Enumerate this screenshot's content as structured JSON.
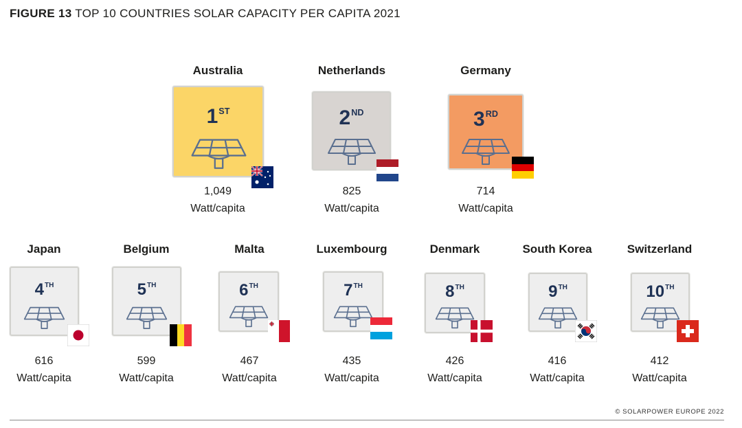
{
  "title": {
    "figure_number": "FIGURE 13",
    "text": "TOP 10 COUNTRIES SOLAR CAPACITY PER CAPITA 2021"
  },
  "source": "© SOLARPOWER EUROPE 2022",
  "chart_data": {
    "type": "ranking",
    "title": "TOP 10 COUNTRIES SOLAR CAPACITY PER CAPITA 2021",
    "unit": "Watt/capita",
    "entries": [
      {
        "rank": 1,
        "rank_number": "1",
        "rank_suffix": "ST",
        "country": "Australia",
        "value": 1049,
        "value_label": "1,049",
        "flag": "flag-australia",
        "box_color": "#fbd567"
      },
      {
        "rank": 2,
        "rank_number": "2",
        "rank_suffix": "ND",
        "country": "Netherlands",
        "value": 825,
        "value_label": "825",
        "flag": "flag-netherlands",
        "box_color": "#d8d4d1"
      },
      {
        "rank": 3,
        "rank_number": "3",
        "rank_suffix": "RD",
        "country": "Germany",
        "value": 714,
        "value_label": "714",
        "flag": "flag-germany",
        "box_color": "#f39b62"
      },
      {
        "rank": 4,
        "rank_number": "4",
        "rank_suffix": "TH",
        "country": "Japan",
        "value": 616,
        "value_label": "616",
        "flag": "flag-japan",
        "box_color": "#eeeeee"
      },
      {
        "rank": 5,
        "rank_number": "5",
        "rank_suffix": "TH",
        "country": "Belgium",
        "value": 599,
        "value_label": "599",
        "flag": "flag-belgium",
        "box_color": "#eeeeee"
      },
      {
        "rank": 6,
        "rank_number": "6",
        "rank_suffix": "TH",
        "country": "Malta",
        "value": 467,
        "value_label": "467",
        "flag": "flag-malta",
        "box_color": "#eeeeee"
      },
      {
        "rank": 7,
        "rank_number": "7",
        "rank_suffix": "TH",
        "country": "Luxembourg",
        "value": 435,
        "value_label": "435",
        "flag": "flag-luxembourg",
        "box_color": "#eeeeee"
      },
      {
        "rank": 8,
        "rank_number": "8",
        "rank_suffix": "TH",
        "country": "Denmark",
        "value": 426,
        "value_label": "426",
        "flag": "flag-denmark",
        "box_color": "#eeeeee"
      },
      {
        "rank": 9,
        "rank_number": "9",
        "rank_suffix": "TH",
        "country": "South Korea",
        "value": 416,
        "value_label": "416",
        "flag": "flag-south-korea",
        "box_color": "#eeeeee"
      },
      {
        "rank": 10,
        "rank_number": "10",
        "rank_suffix": "TH",
        "country": "Switzerland",
        "value": 412,
        "value_label": "412",
        "flag": "flag-switzerland",
        "box_color": "#eeeeee"
      }
    ]
  }
}
